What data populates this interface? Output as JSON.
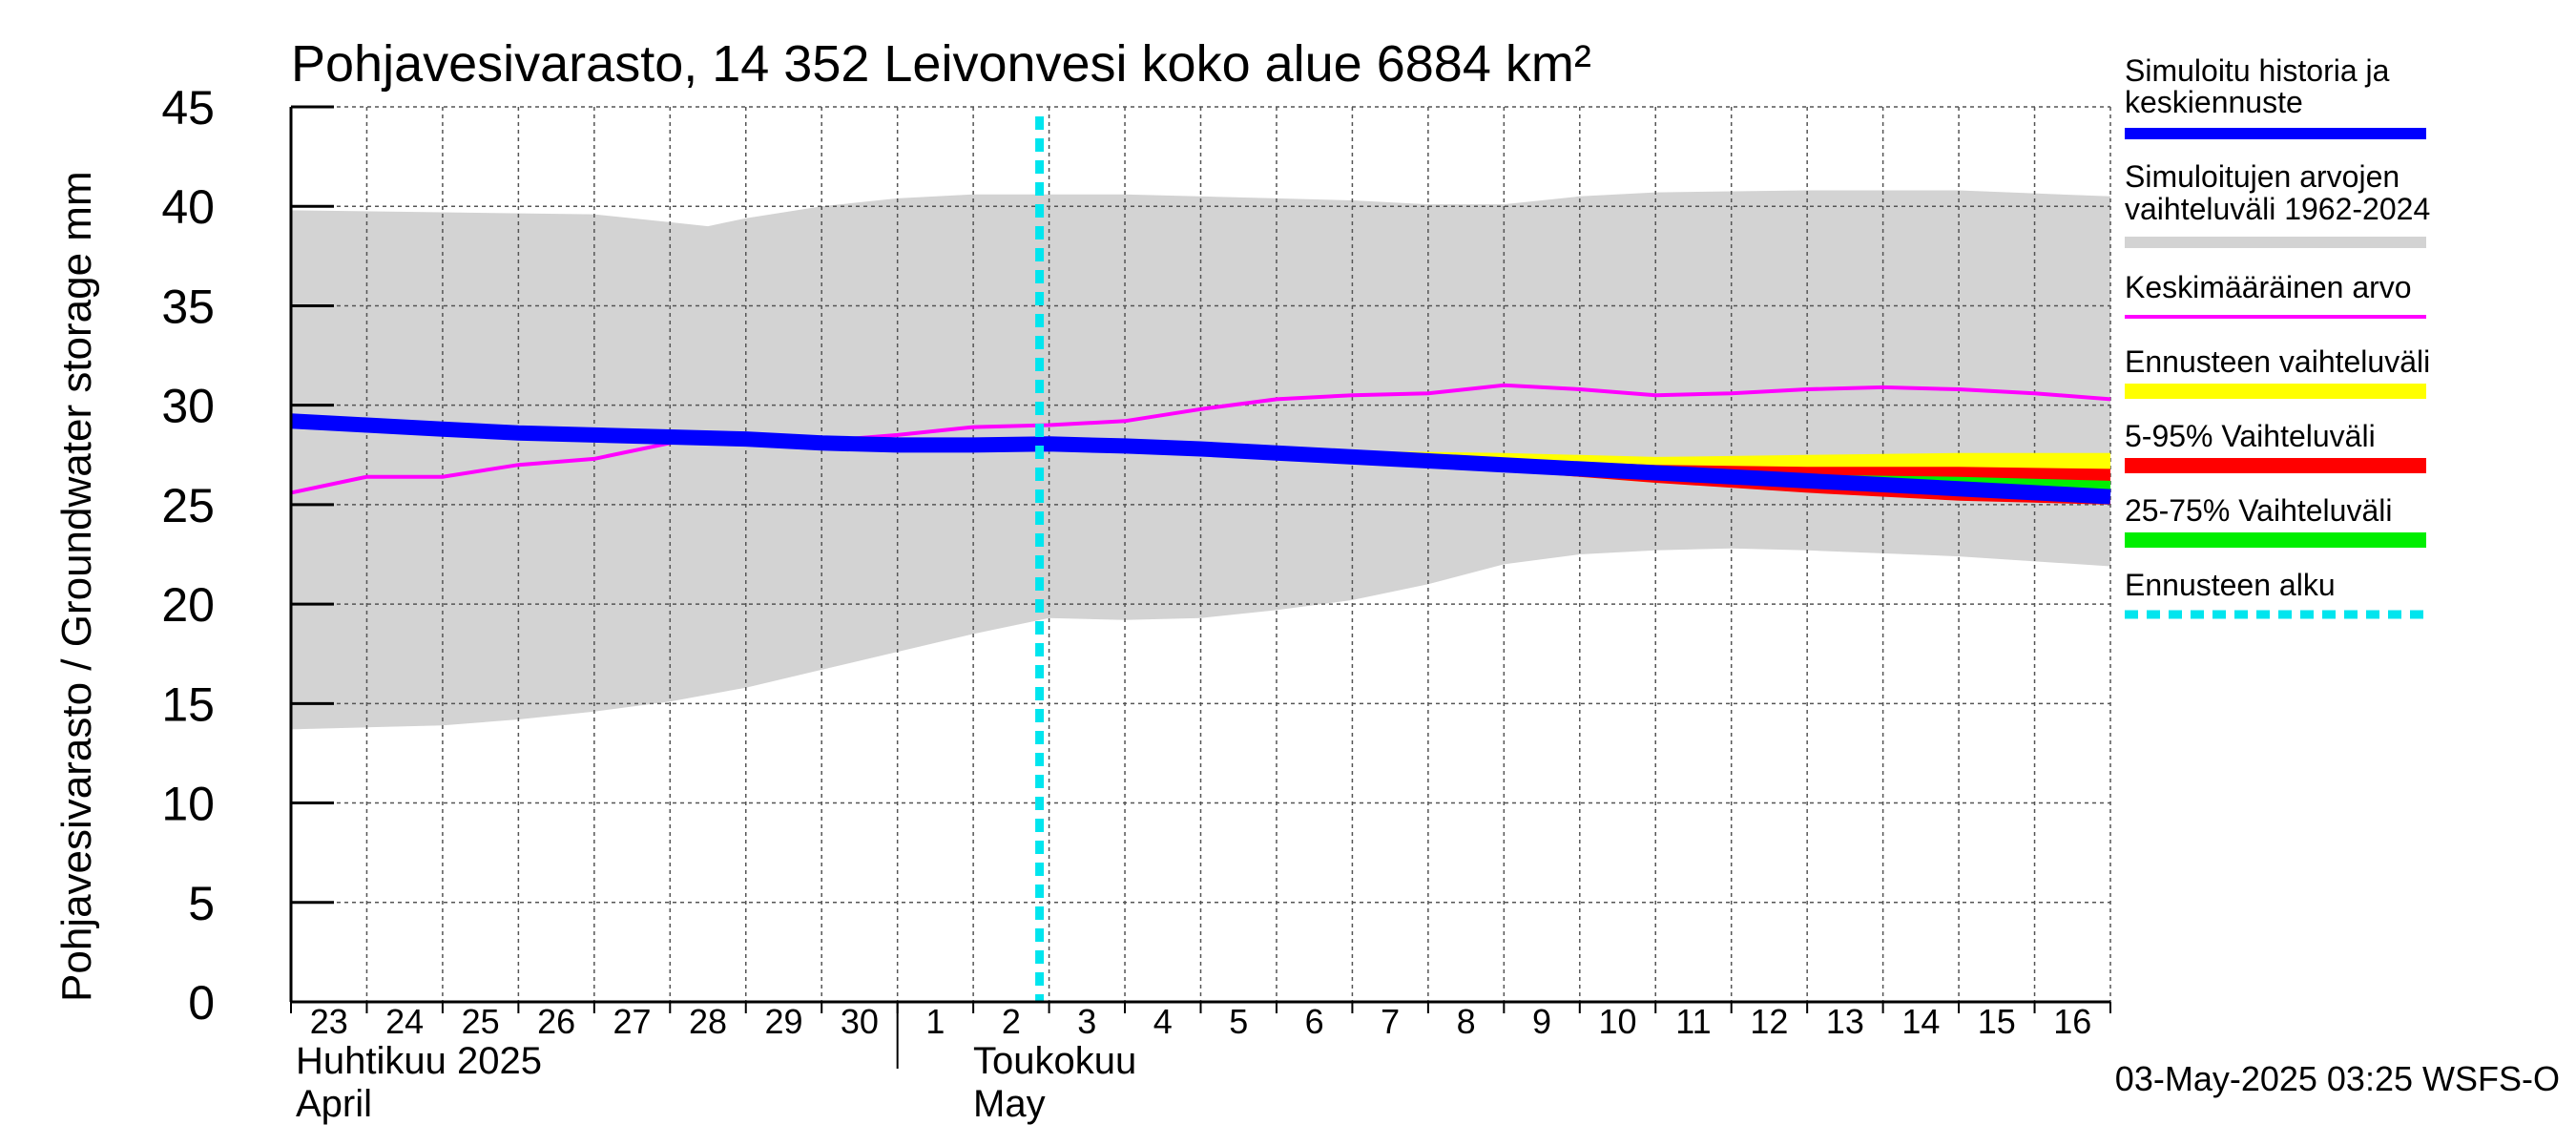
{
  "chart_data": {
    "type": "area",
    "title": "Pohjavesivarasto, 14 352 Leivonvesi koko alue 6884 km²",
    "ylabel": "Pohjavesivarasto / Groundwater storage   mm",
    "ylim": [
      0,
      45
    ],
    "yticks": [
      "0",
      "5",
      "10",
      "15",
      "20",
      "25",
      "30",
      "35",
      "40",
      "45"
    ],
    "x_day_labels": [
      "23",
      "24",
      "25",
      "26",
      "27",
      "28",
      "29",
      "30",
      "1",
      "2",
      "3",
      "4",
      "5",
      "6",
      "7",
      "8",
      "9",
      "10",
      "11",
      "12",
      "13",
      "14",
      "15",
      "16"
    ],
    "month_labels": [
      {
        "fi": "Huhtikuu  2025",
        "en": "April"
      },
      {
        "fi": "Toukokuu",
        "en": "May"
      }
    ],
    "grid": true,
    "legend_position": "right",
    "forecast_start": "2025-05-03",
    "footer": "03-May-2025 03:25 WSFS-O",
    "legend": [
      {
        "key": "history",
        "label_lines": [
          "Simuloitu historia ja",
          "keskiennuste"
        ],
        "color": "#0000ff"
      },
      {
        "key": "range",
        "label_lines": [
          "Simuloitujen arvojen",
          "vaihteluväli 1962-2024"
        ],
        "color": "#d3d3d3"
      },
      {
        "key": "mean",
        "label_lines": [
          "Keskimääräinen arvo"
        ],
        "color": "#ff00ff"
      },
      {
        "key": "forecast_range",
        "label_lines": [
          "Ennusteen vaihteluväli"
        ],
        "color": "#ffff00"
      },
      {
        "key": "p5_95",
        "label_lines": [
          "5-95% Vaihteluväli"
        ],
        "color": "#ff0000"
      },
      {
        "key": "p25_75",
        "label_lines": [
          "25-75% Vaihteluväli"
        ],
        "color": "#00ee00"
      },
      {
        "key": "forecast_start",
        "label_lines": [
          "Ennusteen alku"
        ],
        "color": "#00e5ee"
      }
    ],
    "series": {
      "range_upper": [
        [
          0,
          39.8
        ],
        [
          4,
          39.6
        ],
        [
          5,
          39.2
        ],
        [
          5.5,
          39.0
        ],
        [
          6,
          39.4
        ],
        [
          7,
          40.0
        ],
        [
          8,
          40.4
        ],
        [
          9,
          40.6
        ],
        [
          11,
          40.6
        ],
        [
          13,
          40.4
        ],
        [
          14,
          40.3
        ],
        [
          15,
          40.1
        ],
        [
          16,
          40.1
        ],
        [
          17,
          40.5
        ],
        [
          18,
          40.7
        ],
        [
          20,
          40.8
        ],
        [
          22,
          40.8
        ],
        [
          24,
          40.5
        ]
      ],
      "range_lower": [
        [
          0,
          13.7
        ],
        [
          1,
          13.8
        ],
        [
          2,
          13.9
        ],
        [
          3,
          14.2
        ],
        [
          4,
          14.6
        ],
        [
          5,
          15.1
        ],
        [
          6,
          15.8
        ],
        [
          7,
          16.7
        ],
        [
          8,
          17.6
        ],
        [
          9,
          18.5
        ],
        [
          10,
          19.3
        ],
        [
          11,
          19.2
        ],
        [
          12,
          19.3
        ],
        [
          13,
          19.7
        ],
        [
          14,
          20.2
        ],
        [
          15,
          21.0
        ],
        [
          16,
          22.0
        ],
        [
          17,
          22.5
        ],
        [
          18,
          22.7
        ],
        [
          19,
          22.8
        ],
        [
          20,
          22.7
        ],
        [
          22,
          22.4
        ],
        [
          24,
          21.9
        ]
      ],
      "mean": [
        [
          0,
          25.6
        ],
        [
          1,
          26.4
        ],
        [
          2,
          26.4
        ],
        [
          3,
          27.0
        ],
        [
          4,
          27.3
        ],
        [
          5,
          28.1
        ],
        [
          6,
          28.5
        ],
        [
          7,
          28.2
        ],
        [
          8,
          28.5
        ],
        [
          9,
          28.9
        ],
        [
          10,
          29.0
        ],
        [
          11,
          29.2
        ],
        [
          12,
          29.8
        ],
        [
          13,
          30.3
        ],
        [
          14,
          30.5
        ],
        [
          15,
          30.6
        ],
        [
          16,
          31.0
        ],
        [
          17,
          30.8
        ],
        [
          18,
          30.5
        ],
        [
          19,
          30.6
        ],
        [
          20,
          30.8
        ],
        [
          21,
          30.9
        ],
        [
          22,
          30.8
        ],
        [
          23,
          30.6
        ],
        [
          24,
          30.3
        ]
      ],
      "history": [
        [
          0,
          29.2
        ],
        [
          1,
          29.0
        ],
        [
          2,
          28.8
        ],
        [
          3,
          28.6
        ],
        [
          4,
          28.5
        ],
        [
          5,
          28.4
        ],
        [
          6,
          28.3
        ],
        [
          7,
          28.1
        ],
        [
          8,
          28.0
        ],
        [
          9,
          28.0
        ],
        [
          10,
          28.05
        ],
        [
          11,
          27.95
        ],
        [
          12,
          27.8
        ],
        [
          13,
          27.6
        ],
        [
          14,
          27.4
        ],
        [
          15,
          27.2
        ],
        [
          16,
          27.0
        ],
        [
          17,
          26.8
        ],
        [
          18,
          26.6
        ],
        [
          19,
          26.4
        ],
        [
          20,
          26.2
        ],
        [
          21,
          26.0
        ],
        [
          22,
          25.8
        ],
        [
          23,
          25.6
        ],
        [
          24,
          25.4
        ]
      ],
      "forecast_range_upper": [
        [
          10,
          28.1
        ],
        [
          12,
          27.9
        ],
        [
          14,
          27.7
        ],
        [
          16,
          27.6
        ],
        [
          18,
          27.4
        ],
        [
          20,
          27.5
        ],
        [
          22,
          27.6
        ],
        [
          24,
          27.6
        ]
      ],
      "forecast_range_lower": [
        [
          10,
          28.0
        ],
        [
          12,
          27.7
        ],
        [
          14,
          27.2
        ],
        [
          16,
          26.7
        ],
        [
          18,
          26.1
        ],
        [
          20,
          25.7
        ],
        [
          22,
          25.3
        ],
        [
          24,
          25.0
        ]
      ],
      "p5_95_upper": [
        [
          10,
          28.1
        ],
        [
          12,
          27.8
        ],
        [
          14,
          27.6
        ],
        [
          16,
          27.3
        ],
        [
          18,
          27.0
        ],
        [
          20,
          26.9
        ],
        [
          22,
          26.9
        ],
        [
          24,
          26.8
        ]
      ],
      "p5_95_lower": [
        [
          10,
          28.0
        ],
        [
          12,
          27.7
        ],
        [
          14,
          27.2
        ],
        [
          16,
          26.7
        ],
        [
          18,
          26.1
        ],
        [
          20,
          25.6
        ],
        [
          22,
          25.2
        ],
        [
          24,
          25.0
        ]
      ],
      "p25_75_upper": [
        [
          10,
          28.1
        ],
        [
          12,
          27.8
        ],
        [
          14,
          27.5
        ],
        [
          16,
          27.2
        ],
        [
          18,
          26.8
        ],
        [
          20,
          26.5
        ],
        [
          22,
          26.4
        ],
        [
          24,
          26.2
        ]
      ],
      "p25_75_lower": [
        [
          10,
          28.0
        ],
        [
          12,
          27.7
        ],
        [
          14,
          27.3
        ],
        [
          16,
          26.9
        ],
        [
          18,
          26.5
        ],
        [
          20,
          26.1
        ],
        [
          22,
          25.9
        ],
        [
          24,
          25.7
        ]
      ]
    }
  }
}
